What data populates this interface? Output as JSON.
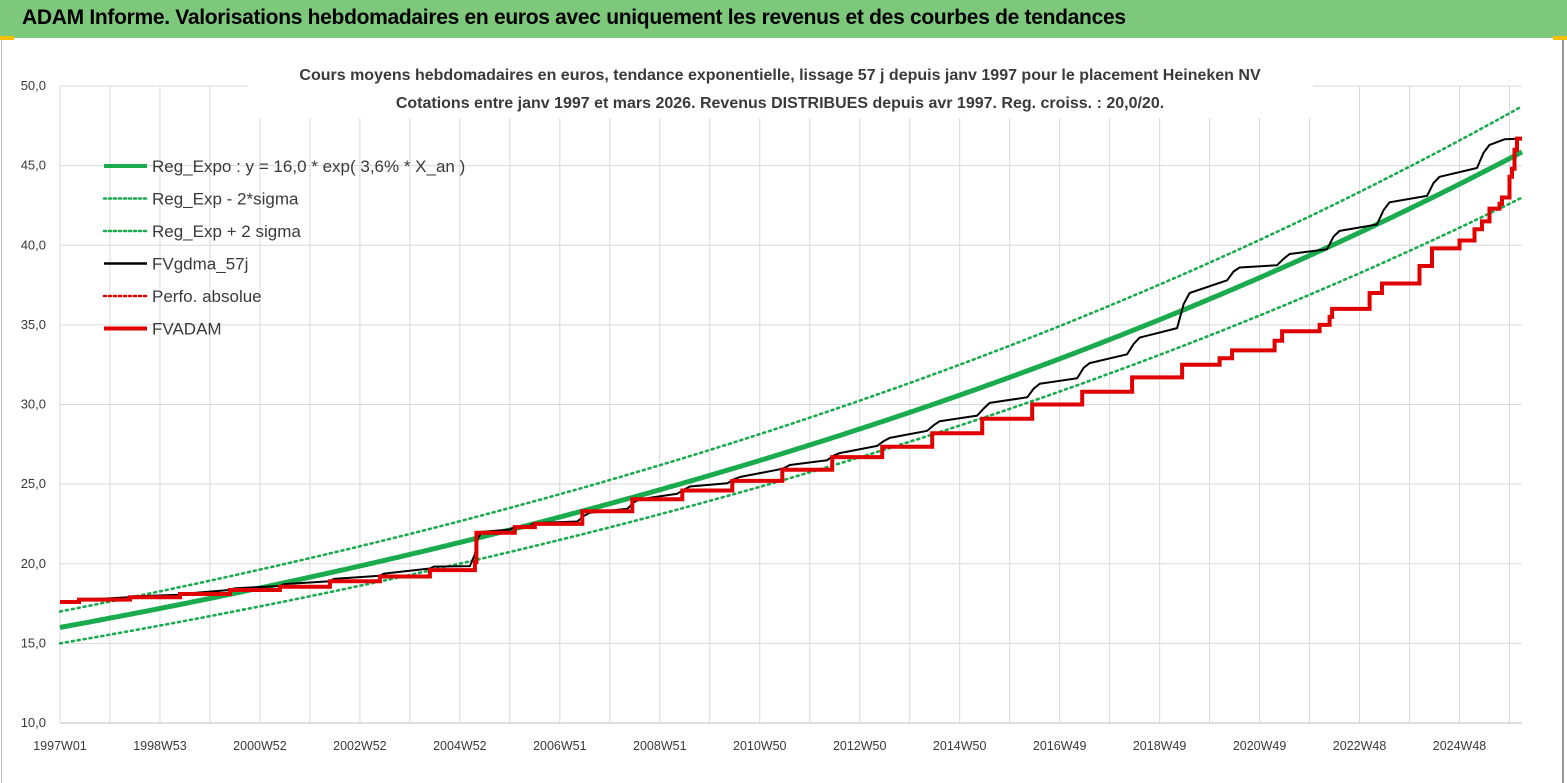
{
  "banner": {
    "title": "ADAM Informe. Valorisations hebdomadaires en euros avec uniquement les revenus et des courbes de tendances",
    "background": "#7dc87b"
  },
  "chart_data": {
    "type": "line",
    "title": "Cours moyens hebdomadaires en euros, tendance exponentielle, lissage 57 j depuis janv 1997 pour le placement Heineken NV",
    "subtitle": "Cotations entre janv 1997 et mars 2026. Revenus DISTRIBUES depuis avr 1997. Reg. croiss. : 20,0/20.",
    "xlabel": "",
    "ylabel": "",
    "ylim": [
      10,
      50
    ],
    "xlim": [
      1997.0,
      2026.25
    ],
    "grid": true,
    "legend_position": "top-left",
    "y_ticks": [
      "10,0",
      "15,0",
      "20,0",
      "25,0",
      "30,0",
      "35,0",
      "40,0",
      "45,0",
      "50,0"
    ],
    "x_ticks": [
      "1997W01",
      "1998W53",
      "2000W52",
      "2002W52",
      "2004W52",
      "2006W51",
      "2008W51",
      "2010W50",
      "2012W50",
      "2014W50",
      "2016W49",
      "2018W49",
      "2020W49",
      "2022W48",
      "2024W48"
    ],
    "trend": {
      "coefficient": 16.0,
      "rate": 0.036,
      "sigma_factor": 0.0625
    },
    "series": [
      {
        "name": "Reg_Expo : y = 16,0 * exp( 3,6% *  X_an )",
        "color": "#1aab4e",
        "style": "solid-thick",
        "kind": "trend"
      },
      {
        "name": "Reg_Exp - 2*sigma",
        "color": "#1aab4e",
        "style": "dotted",
        "kind": "trend_low"
      },
      {
        "name": "Reg_Exp + 2 sigma",
        "color": "#1aab4e",
        "style": "dotted",
        "kind": "trend_high"
      },
      {
        "name": "FVgdma_57j",
        "color": "#000000",
        "style": "solid",
        "kind": "smoothed",
        "points": [
          [
            1997.0,
            17.6
          ],
          [
            1997.33,
            17.65
          ],
          [
            1997.38,
            17.72
          ],
          [
            1998.4,
            17.9
          ],
          [
            1998.48,
            17.95
          ],
          [
            1999.4,
            18.05
          ],
          [
            1999.48,
            18.12
          ],
          [
            2000.4,
            18.35
          ],
          [
            2000.48,
            18.45
          ],
          [
            2001.4,
            18.6
          ],
          [
            2001.48,
            18.72
          ],
          [
            2002.4,
            18.9
          ],
          [
            2002.48,
            19.05
          ],
          [
            2003.4,
            19.25
          ],
          [
            2003.48,
            19.38
          ],
          [
            2004.4,
            19.7
          ],
          [
            2004.48,
            19.82
          ],
          [
            2005.2,
            19.85
          ],
          [
            2005.3,
            20.6
          ],
          [
            2005.36,
            21.6
          ],
          [
            2005.44,
            22.0
          ],
          [
            2006.0,
            22.15
          ],
          [
            2006.1,
            22.3
          ],
          [
            2006.4,
            22.38
          ],
          [
            2006.5,
            22.55
          ],
          [
            2007.35,
            22.65
          ],
          [
            2007.48,
            23.0
          ],
          [
            2007.6,
            23.2
          ],
          [
            2008.35,
            23.45
          ],
          [
            2008.48,
            23.85
          ],
          [
            2008.6,
            24.05
          ],
          [
            2009.35,
            24.4
          ],
          [
            2009.48,
            24.65
          ],
          [
            2009.6,
            24.85
          ],
          [
            2010.35,
            25.05
          ],
          [
            2010.48,
            25.3
          ],
          [
            2010.6,
            25.45
          ],
          [
            2011.35,
            25.9
          ],
          [
            2011.48,
            26.0
          ],
          [
            2011.6,
            26.2
          ],
          [
            2012.35,
            26.5
          ],
          [
            2012.48,
            26.8
          ],
          [
            2012.6,
            26.95
          ],
          [
            2013.35,
            27.4
          ],
          [
            2013.48,
            27.7
          ],
          [
            2013.6,
            27.9
          ],
          [
            2014.35,
            28.35
          ],
          [
            2014.48,
            28.7
          ],
          [
            2014.6,
            28.95
          ],
          [
            2015.35,
            29.3
          ],
          [
            2015.48,
            29.75
          ],
          [
            2015.6,
            30.1
          ],
          [
            2016.35,
            30.45
          ],
          [
            2016.48,
            31.0
          ],
          [
            2016.6,
            31.3
          ],
          [
            2017.35,
            31.65
          ],
          [
            2017.48,
            32.3
          ],
          [
            2017.6,
            32.6
          ],
          [
            2018.35,
            33.15
          ],
          [
            2018.48,
            33.8
          ],
          [
            2018.6,
            34.2
          ],
          [
            2019.35,
            34.8
          ],
          [
            2019.48,
            36.3
          ],
          [
            2019.6,
            37.0
          ],
          [
            2020.35,
            37.8
          ],
          [
            2020.48,
            38.35
          ],
          [
            2020.6,
            38.6
          ],
          [
            2021.35,
            38.75
          ],
          [
            2021.48,
            39.15
          ],
          [
            2021.6,
            39.45
          ],
          [
            2022.35,
            39.75
          ],
          [
            2022.48,
            40.55
          ],
          [
            2022.6,
            40.9
          ],
          [
            2023.35,
            41.3
          ],
          [
            2023.48,
            42.2
          ],
          [
            2023.6,
            42.7
          ],
          [
            2024.35,
            43.1
          ],
          [
            2024.48,
            43.9
          ],
          [
            2024.6,
            44.3
          ],
          [
            2025.35,
            44.85
          ],
          [
            2025.48,
            45.8
          ],
          [
            2025.6,
            46.3
          ],
          [
            2025.9,
            46.65
          ],
          [
            2026.25,
            46.7
          ]
        ]
      },
      {
        "name": "Perfo. absolue",
        "color": "#e00000",
        "style": "dotted",
        "kind": "perfo"
      },
      {
        "name": "FVADAM",
        "color": "#e00000",
        "style": "solid-thick",
        "kind": "steps",
        "points": [
          [
            1997.0,
            17.6
          ],
          [
            1997.38,
            17.6
          ],
          [
            1997.38,
            17.75
          ],
          [
            1998.4,
            17.75
          ],
          [
            1998.4,
            17.9
          ],
          [
            1999.4,
            17.9
          ],
          [
            1999.4,
            18.1
          ],
          [
            2000.4,
            18.1
          ],
          [
            2000.4,
            18.35
          ],
          [
            2001.4,
            18.35
          ],
          [
            2001.4,
            18.55
          ],
          [
            2002.4,
            18.55
          ],
          [
            2002.4,
            18.9
          ],
          [
            2003.4,
            18.9
          ],
          [
            2003.4,
            19.2
          ],
          [
            2004.4,
            19.2
          ],
          [
            2004.4,
            19.6
          ],
          [
            2005.3,
            19.6
          ],
          [
            2005.3,
            20.1
          ],
          [
            2005.33,
            20.1
          ],
          [
            2005.33,
            21.95
          ],
          [
            2006.1,
            21.95
          ],
          [
            2006.1,
            22.3
          ],
          [
            2006.5,
            22.3
          ],
          [
            2006.5,
            22.5
          ],
          [
            2007.45,
            22.5
          ],
          [
            2007.45,
            23.3
          ],
          [
            2008.45,
            23.3
          ],
          [
            2008.45,
            24.05
          ],
          [
            2009.45,
            24.05
          ],
          [
            2009.45,
            24.6
          ],
          [
            2010.45,
            24.6
          ],
          [
            2010.45,
            25.2
          ],
          [
            2011.45,
            25.2
          ],
          [
            2011.45,
            25.9
          ],
          [
            2012.45,
            25.9
          ],
          [
            2012.45,
            26.7
          ],
          [
            2013.45,
            26.7
          ],
          [
            2013.45,
            27.35
          ],
          [
            2014.45,
            27.35
          ],
          [
            2014.45,
            28.2
          ],
          [
            2015.45,
            28.2
          ],
          [
            2015.45,
            29.1
          ],
          [
            2016.45,
            29.1
          ],
          [
            2016.45,
            30.0
          ],
          [
            2017.45,
            30.0
          ],
          [
            2017.45,
            30.8
          ],
          [
            2018.45,
            30.8
          ],
          [
            2018.45,
            31.7
          ],
          [
            2019.45,
            31.7
          ],
          [
            2019.45,
            32.5
          ],
          [
            2020.2,
            32.5
          ],
          [
            2020.2,
            32.9
          ],
          [
            2020.45,
            32.9
          ],
          [
            2020.45,
            33.4
          ],
          [
            2021.3,
            33.4
          ],
          [
            2021.3,
            34.0
          ],
          [
            2021.45,
            34.0
          ],
          [
            2021.45,
            34.6
          ],
          [
            2022.2,
            34.6
          ],
          [
            2022.2,
            35.0
          ],
          [
            2022.4,
            35.0
          ],
          [
            2022.4,
            35.5
          ],
          [
            2022.45,
            35.5
          ],
          [
            2022.45,
            36.0
          ],
          [
            2023.2,
            36.0
          ],
          [
            2023.2,
            37.0
          ],
          [
            2023.45,
            37.0
          ],
          [
            2023.45,
            37.6
          ],
          [
            2024.2,
            37.6
          ],
          [
            2024.2,
            38.7
          ],
          [
            2024.45,
            38.7
          ],
          [
            2024.45,
            39.8
          ],
          [
            2025.0,
            39.8
          ],
          [
            2025.0,
            40.3
          ],
          [
            2025.3,
            40.3
          ],
          [
            2025.3,
            41.0
          ],
          [
            2025.45,
            41.0
          ],
          [
            2025.45,
            41.5
          ],
          [
            2025.6,
            41.5
          ],
          [
            2025.6,
            42.3
          ],
          [
            2025.8,
            42.3
          ],
          [
            2025.8,
            42.6
          ],
          [
            2025.85,
            42.6
          ],
          [
            2025.85,
            43.0
          ],
          [
            2026.0,
            43.0
          ],
          [
            2026.0,
            44.3
          ],
          [
            2026.05,
            44.3
          ],
          [
            2026.05,
            44.8
          ],
          [
            2026.1,
            44.8
          ],
          [
            2026.1,
            46.0
          ],
          [
            2026.15,
            46.0
          ],
          [
            2026.15,
            46.7
          ],
          [
            2026.25,
            46.7
          ]
        ]
      }
    ]
  }
}
